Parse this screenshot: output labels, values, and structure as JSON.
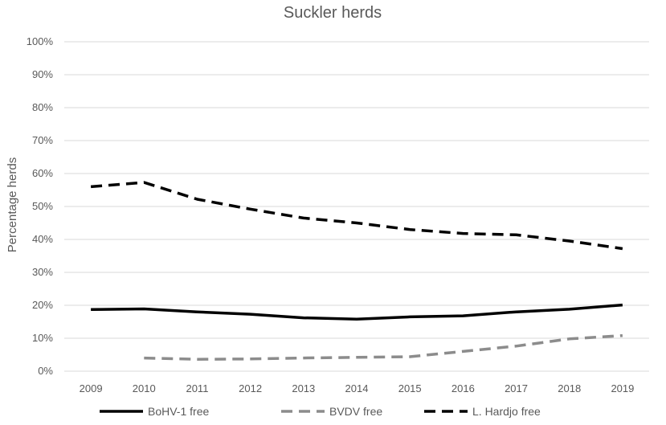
{
  "chart_data": {
    "type": "line",
    "title": "Suckler herds",
    "xlabel": "",
    "ylabel": "Percentage herds",
    "x": [
      "2009",
      "2010",
      "2011",
      "2012",
      "2013",
      "2014",
      "2015",
      "2016",
      "2017",
      "2018",
      "2019"
    ],
    "y_ticks": [
      "0%",
      "10%",
      "20%",
      "30%",
      "40%",
      "50%",
      "60%",
      "70%",
      "80%",
      "90%",
      "100%"
    ],
    "ylim": [
      0,
      100
    ],
    "grid": true,
    "legend_position": "bottom",
    "series": [
      {
        "name": "BoHV-1 free",
        "color": "#000000",
        "style": "solid",
        "values": [
          18.7,
          18.9,
          18.0,
          17.3,
          16.2,
          15.8,
          16.5,
          16.8,
          18.0,
          18.8,
          20.1
        ]
      },
      {
        "name": "BVDV free",
        "color": "#8c8c8c",
        "style": "dashed",
        "values": [
          null,
          4.0,
          3.6,
          3.7,
          4.0,
          4.2,
          4.4,
          6.0,
          7.6,
          9.8,
          10.8
        ]
      },
      {
        "name": "L. Hardjo free",
        "color": "#000000",
        "style": "dashed",
        "values": [
          56.0,
          57.3,
          52.2,
          49.2,
          46.5,
          45.0,
          43.0,
          41.8,
          41.4,
          39.5,
          37.2
        ]
      }
    ]
  }
}
